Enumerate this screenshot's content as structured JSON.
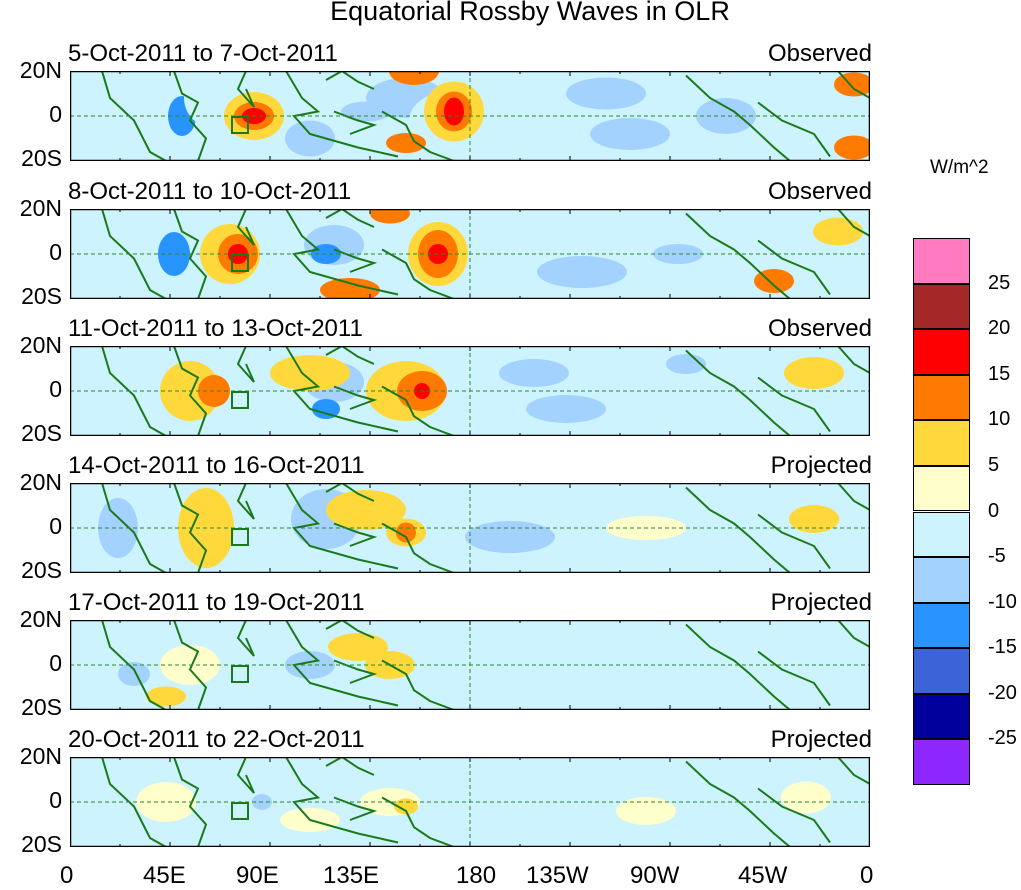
{
  "title": "Equatorial Rossby Waves in OLR",
  "units": "W/m^2",
  "lat_labels": [
    "20N",
    "0",
    "20S"
  ],
  "lon_labels": [
    "0",
    "45E",
    "90E",
    "135E",
    "180",
    "135W",
    "90W",
    "45W",
    "0"
  ],
  "panels": [
    {
      "date": "5-Oct-2011 to 7-Oct-2011",
      "status": "Observed"
    },
    {
      "date": "8-Oct-2011 to 10-Oct-2011",
      "status": "Observed"
    },
    {
      "date": "11-Oct-2011 to 13-Oct-2011",
      "status": "Observed"
    },
    {
      "date": "14-Oct-2011 to 16-Oct-2011",
      "status": "Projected"
    },
    {
      "date": "17-Oct-2011 to 19-Oct-2011",
      "status": "Projected"
    },
    {
      "date": "20-Oct-2011 to 22-Oct-2011",
      "status": "Projected"
    }
  ],
  "colorbar": {
    "labels": [
      "25",
      "20",
      "15",
      "10",
      "5",
      "0",
      "-5",
      "-10",
      "-15",
      "-20",
      "-25"
    ],
    "colors": [
      "#ff7ac0",
      "#a52828",
      "#ff0000",
      "#ff7a00",
      "#ffd83c",
      "#ffffcc",
      "#cdf3ff",
      "#a4d2ff",
      "#2894ff",
      "#3c64d8",
      "#00009c",
      "#8c28ff"
    ]
  }
}
